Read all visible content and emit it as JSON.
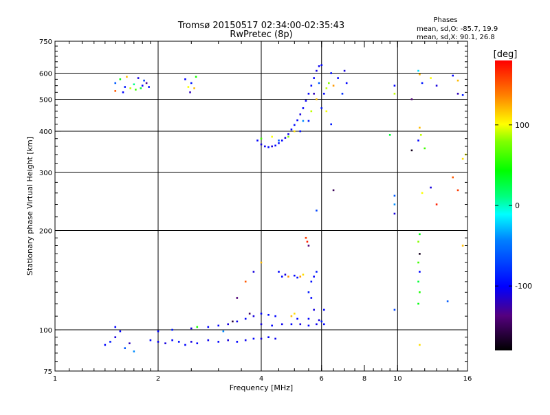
{
  "chart_data": {
    "type": "scatter",
    "title": "Tromsø 20150517 02:34:00-02:35:43",
    "subtitle": "RwPretec (8p)",
    "phases_header": "Phases",
    "phases_o": "mean, sd,O: -85.7, 19.9",
    "phases_x": "mean, sd,X:  90.1, 26.8",
    "xlabel": "Frequency [MHz]",
    "ylabel": "Stationary phase Virtual Height [km]",
    "x_scale": "log",
    "y_scale": "log",
    "xlim": [
      1,
      16
    ],
    "ylim": [
      75,
      750
    ],
    "x_ticks": [
      1,
      2,
      4,
      6,
      8,
      10,
      16
    ],
    "x_tick_labels": [
      "1",
      "2",
      "4",
      "6",
      "8",
      "10",
      "16"
    ],
    "y_ticks": [
      75,
      100,
      200,
      300,
      400,
      500,
      600,
      750
    ],
    "y_tick_labels": [
      "75",
      "100",
      "200",
      "300",
      "400",
      "500",
      "600",
      "750"
    ],
    "x_gridlines": [
      2,
      4,
      6,
      10
    ],
    "y_gridlines": [
      100,
      200,
      300,
      400,
      500,
      600
    ],
    "colorbar": {
      "label": "[deg]",
      "min": -180,
      "max": 180,
      "ticks": [
        100,
        0,
        -100
      ],
      "tick_labels": [
        "100",
        "0",
        "-100"
      ],
      "colormap": "rainbow"
    },
    "series": [
      {
        "points": [
          [
            1.5,
            560,
            -60
          ],
          [
            1.55,
            575,
            40
          ],
          [
            1.6,
            545,
            -90
          ],
          [
            1.62,
            585,
            120
          ],
          [
            1.66,
            540,
            90
          ],
          [
            1.7,
            555,
            10
          ],
          [
            1.72,
            535,
            60
          ],
          [
            1.75,
            580,
            -110
          ],
          [
            1.8,
            550,
            -100
          ],
          [
            1.85,
            560,
            -130
          ],
          [
            1.88,
            545,
            -95
          ],
          [
            1.5,
            530,
            150
          ],
          [
            1.58,
            525,
            -100
          ],
          [
            1.78,
            540,
            30
          ],
          [
            1.82,
            570,
            -70
          ],
          [
            2.4,
            575,
            -100
          ],
          [
            2.45,
            545,
            100
          ],
          [
            2.5,
            560,
            -90
          ],
          [
            2.55,
            540,
            120
          ],
          [
            2.48,
            525,
            -120
          ],
          [
            2.58,
            585,
            50
          ]
        ]
      },
      {
        "points": [
          [
            3.9,
            375,
            -100
          ],
          [
            4.0,
            365,
            -110
          ],
          [
            4.1,
            360,
            -105
          ],
          [
            4.2,
            358,
            -100
          ],
          [
            4.3,
            360,
            -110
          ],
          [
            4.4,
            362,
            -100
          ],
          [
            4.5,
            368,
            -95
          ],
          [
            4.6,
            375,
            -100
          ],
          [
            4.7,
            382,
            -110
          ],
          [
            4.8,
            392,
            -105
          ],
          [
            4.9,
            405,
            -100
          ],
          [
            5.0,
            418,
            -95
          ],
          [
            5.1,
            432,
            -100
          ],
          [
            5.2,
            450,
            -110
          ],
          [
            5.3,
            470,
            -100
          ],
          [
            5.4,
            495,
            -105
          ],
          [
            5.5,
            520,
            -100
          ],
          [
            5.6,
            550,
            -95
          ],
          [
            5.7,
            580,
            -100
          ],
          [
            5.8,
            610,
            -110
          ],
          [
            5.9,
            630,
            -105
          ],
          [
            6.0,
            635,
            -100
          ],
          [
            4.0,
            380,
            60
          ],
          [
            4.3,
            385,
            100
          ],
          [
            4.5,
            375,
            -60
          ],
          [
            4.8,
            385,
            80
          ],
          [
            5.0,
            400,
            110
          ],
          [
            5.3,
            430,
            -40
          ],
          [
            5.6,
            460,
            90
          ],
          [
            5.8,
            500,
            120
          ],
          [
            6.0,
            470,
            -90
          ],
          [
            6.1,
            520,
            -100
          ],
          [
            6.2,
            540,
            90
          ],
          [
            6.3,
            560,
            80
          ],
          [
            6.4,
            600,
            -95
          ],
          [
            6.5,
            550,
            130
          ],
          [
            6.7,
            580,
            -100
          ],
          [
            6.9,
            520,
            -80
          ],
          [
            7.0,
            610,
            -110
          ],
          [
            7.1,
            560,
            -100
          ],
          [
            6.2,
            460,
            100
          ],
          [
            6.4,
            420,
            -90
          ],
          [
            5.9,
            560,
            -60
          ],
          [
            5.7,
            520,
            -120
          ],
          [
            5.5,
            430,
            -90
          ],
          [
            5.2,
            400,
            -95
          ]
        ]
      },
      {
        "points": [
          [
            9.8,
            550,
            -100
          ],
          [
            9.8,
            520,
            90
          ],
          [
            11.0,
            500,
            -140
          ],
          [
            11.5,
            610,
            -20
          ],
          [
            11.6,
            595,
            120
          ],
          [
            11.8,
            560,
            -90
          ],
          [
            12.5,
            580,
            100
          ],
          [
            13.0,
            550,
            -110
          ],
          [
            14.5,
            590,
            -100
          ],
          [
            15.0,
            520,
            -120
          ],
          [
            15.5,
            515,
            -90
          ],
          [
            15.0,
            570,
            120
          ],
          [
            9.5,
            390,
            30
          ],
          [
            11.0,
            350,
            -170
          ],
          [
            11.6,
            410,
            120
          ],
          [
            11.7,
            390,
            90
          ],
          [
            11.5,
            375,
            -100
          ],
          [
            12.0,
            355,
            60
          ],
          [
            15.5,
            330,
            110
          ],
          [
            15.8,
            340,
            100
          ],
          [
            14.5,
            290,
            150
          ],
          [
            15.0,
            265,
            160
          ],
          [
            13.0,
            240,
            170
          ],
          [
            12.5,
            270,
            -110
          ],
          [
            11.8,
            260,
            100
          ],
          [
            9.8,
            255,
            -60
          ],
          [
            9.8,
            240,
            -40
          ],
          [
            9.8,
            225,
            -110
          ],
          [
            11.6,
            195,
            40
          ],
          [
            11.5,
            185,
            80
          ],
          [
            11.6,
            170,
            -170
          ],
          [
            11.5,
            160,
            60
          ],
          [
            11.6,
            150,
            -100
          ],
          [
            11.5,
            140,
            30
          ],
          [
            11.6,
            130,
            50
          ],
          [
            11.5,
            120,
            40
          ],
          [
            14.0,
            122,
            -60
          ],
          [
            11.6,
            90,
            110
          ],
          [
            15.5,
            180,
            120
          ],
          [
            9.8,
            115,
            -70
          ]
        ]
      },
      {
        "points": [
          [
            5.8,
            230,
            -70
          ],
          [
            6.5,
            265,
            -150
          ],
          [
            5.4,
            190,
            160
          ],
          [
            5.45,
            185,
            170
          ],
          [
            5.5,
            180,
            -140
          ],
          [
            5.5,
            130,
            -90
          ],
          [
            5.6,
            125,
            -100
          ],
          [
            5.7,
            115,
            -110
          ],
          [
            5.6,
            140,
            -95
          ],
          [
            5.7,
            145,
            -100
          ],
          [
            5.8,
            150,
            -90
          ],
          [
            4.8,
            145,
            130
          ],
          [
            4.6,
            145,
            -100
          ],
          [
            4.7,
            147,
            -110
          ],
          [
            5.0,
            146,
            -100
          ],
          [
            5.2,
            145,
            130
          ],
          [
            5.3,
            147,
            110
          ],
          [
            5.1,
            144,
            -95
          ],
          [
            4.5,
            150,
            -100
          ],
          [
            4.0,
            160,
            120
          ],
          [
            3.8,
            150,
            -110
          ],
          [
            3.6,
            140,
            150
          ],
          [
            3.4,
            125,
            -140
          ],
          [
            4.9,
            110,
            120
          ],
          [
            5.0,
            112,
            110
          ],
          [
            5.1,
            108,
            -100
          ]
        ]
      },
      {
        "points": [
          [
            1.4,
            90,
            -100
          ],
          [
            1.45,
            92,
            -90
          ],
          [
            1.5,
            95,
            -110
          ],
          [
            1.55,
            99,
            -100
          ],
          [
            1.6,
            88,
            -60
          ],
          [
            1.65,
            91,
            -120
          ],
          [
            1.5,
            102,
            -100
          ],
          [
            1.7,
            86,
            -40
          ],
          [
            1.9,
            93,
            -100
          ],
          [
            2.0,
            92,
            -105
          ],
          [
            2.1,
            91,
            -110
          ],
          [
            2.2,
            93,
            -100
          ],
          [
            2.3,
            92,
            -95
          ],
          [
            2.4,
            90,
            -100
          ],
          [
            2.5,
            92,
            -110
          ],
          [
            2.6,
            91,
            -100
          ],
          [
            2.8,
            93,
            -105
          ],
          [
            3.0,
            92,
            -100
          ],
          [
            3.2,
            93,
            -110
          ],
          [
            3.4,
            92,
            -100
          ],
          [
            3.6,
            93,
            -105
          ],
          [
            3.8,
            94,
            -100
          ],
          [
            4.0,
            94,
            -110
          ],
          [
            4.2,
            95,
            -100
          ],
          [
            4.4,
            94,
            -105
          ],
          [
            2.0,
            99,
            -100
          ],
          [
            2.2,
            100,
            -90
          ],
          [
            2.5,
            101,
            -110
          ],
          [
            2.8,
            102,
            -100
          ],
          [
            3.0,
            103,
            -100
          ],
          [
            3.2,
            104,
            -110
          ],
          [
            3.4,
            106,
            -105
          ],
          [
            3.6,
            108,
            -100
          ],
          [
            3.8,
            110,
            -110
          ],
          [
            4.0,
            112,
            -100
          ],
          [
            4.2,
            111,
            -95
          ],
          [
            4.4,
            110,
            -100
          ],
          [
            4.0,
            104,
            -110
          ],
          [
            4.3,
            103,
            -100
          ],
          [
            4.6,
            104,
            -105
          ],
          [
            4.9,
            104,
            -100
          ],
          [
            5.2,
            104,
            -110
          ],
          [
            5.5,
            103,
            -100
          ],
          [
            5.8,
            104,
            -105
          ],
          [
            6.1,
            104,
            -100
          ],
          [
            3.3,
            106,
            -160
          ],
          [
            3.7,
            112,
            -150
          ],
          [
            5.5,
            108,
            -100
          ],
          [
            5.9,
            107,
            -110
          ],
          [
            6.0,
            106,
            -90
          ],
          [
            6.1,
            115,
            -100
          ],
          [
            2.6,
            102,
            50
          ],
          [
            3.1,
            99,
            -40
          ]
        ]
      }
    ]
  }
}
